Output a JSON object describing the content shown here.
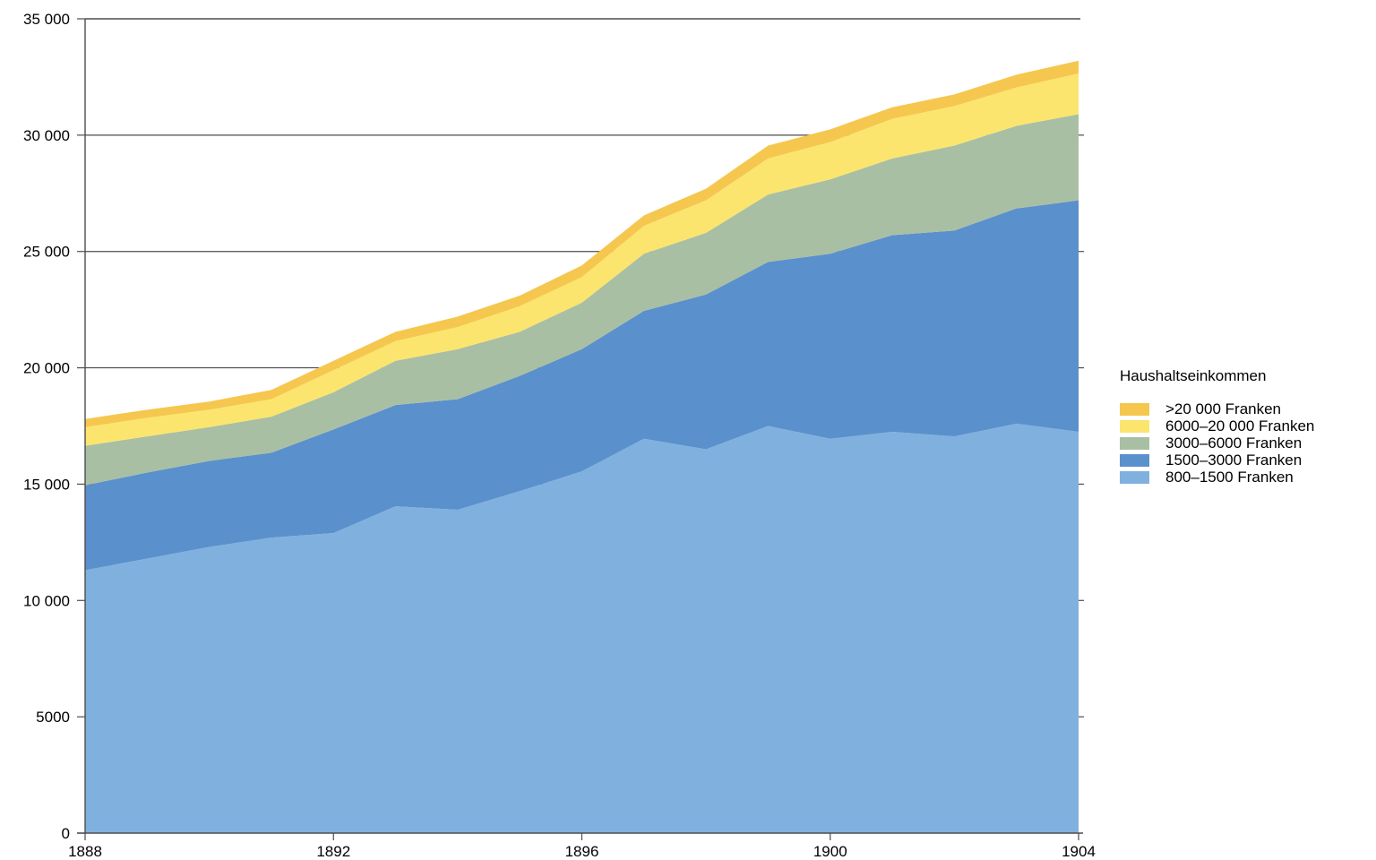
{
  "chart_data": {
    "type": "area",
    "stacked": true,
    "title": "",
    "xlabel": "",
    "ylabel": "",
    "x": [
      1888,
      1889,
      1890,
      1891,
      1892,
      1893,
      1894,
      1895,
      1896,
      1897,
      1898,
      1899,
      1900,
      1901,
      1902,
      1903,
      1904
    ],
    "series": [
      {
        "name": "800–1500 Franken",
        "color": "#80B1DE",
        "values": [
          11300,
          11800,
          12300,
          12700,
          12900,
          14050,
          13900,
          14700,
          15550,
          16950,
          16500,
          17500,
          16950,
          17250,
          17050,
          17600,
          17250
        ]
      },
      {
        "name": "1500–3000 Franken",
        "color": "#5A90CC",
        "values": [
          3650,
          3700,
          3700,
          3650,
          4450,
          4350,
          4750,
          4950,
          5250,
          5500,
          6650,
          7050,
          7950,
          8450,
          8850,
          9250,
          9950
        ]
      },
      {
        "name": "3000–6000 Franken",
        "color": "#A9BFA4",
        "values": [
          1700,
          1550,
          1450,
          1550,
          1600,
          1900,
          2150,
          1900,
          2000,
          2450,
          2650,
          2900,
          3200,
          3300,
          3650,
          3550,
          3700
        ]
      },
      {
        "name": "6000–20 000 Franken",
        "color": "#FBE56E",
        "values": [
          800,
          800,
          750,
          750,
          950,
          850,
          950,
          1100,
          1100,
          1200,
          1400,
          1550,
          1600,
          1700,
          1700,
          1650,
          1750
        ]
      },
      {
        "name": ">20 000 Franken",
        "color": "#F6C74E",
        "values": [
          350,
          350,
          350,
          400,
          400,
          400,
          450,
          450,
          500,
          450,
          500,
          550,
          550,
          500,
          500,
          550,
          550
        ]
      }
    ],
    "xlim": [
      1888,
      1904
    ],
    "ylim": [
      0,
      35000
    ],
    "grid": true,
    "gridline_step": 5000,
    "y_ticks": [
      {
        "value": 35000,
        "label": "35 000"
      },
      {
        "value": 30000,
        "label": "30 000"
      },
      {
        "value": 25000,
        "label": "25 000"
      },
      {
        "value": 20000,
        "label": "20 000"
      },
      {
        "value": 15000,
        "label": "15 000"
      },
      {
        "value": 10000,
        "label": "10 000"
      },
      {
        "value": 5000,
        "label": "5000"
      },
      {
        "value": 0,
        "label": "0"
      }
    ],
    "x_ticks": [
      {
        "value": 1888,
        "label": "1888"
      },
      {
        "value": 1892,
        "label": "1892"
      },
      {
        "value": 1896,
        "label": "1896"
      },
      {
        "value": 1900,
        "label": "1900"
      },
      {
        "value": 1904,
        "label": "1904"
      }
    ],
    "legend": {
      "title": "Haushaltseinkommen",
      "position": "right",
      "order": "top-down"
    },
    "line_color": "#4d4d4d"
  }
}
